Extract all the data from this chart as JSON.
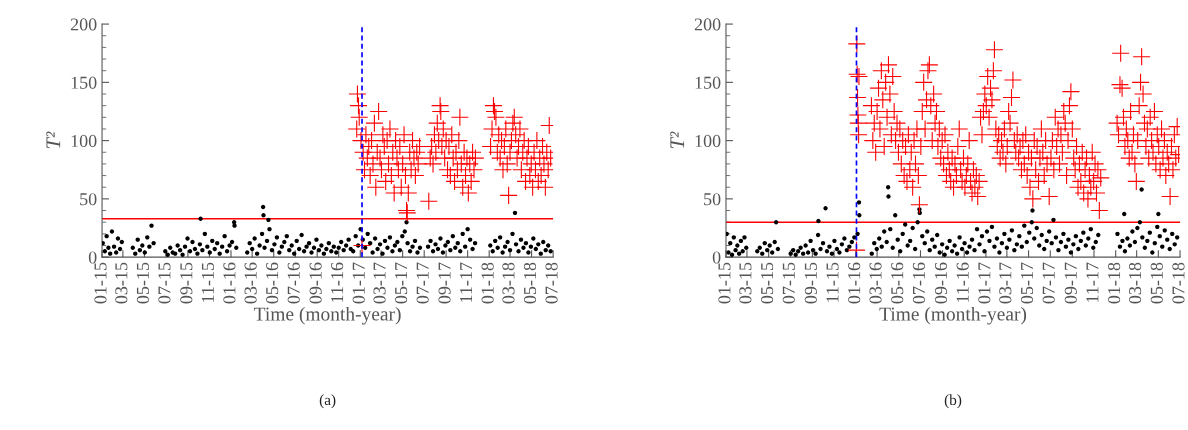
{
  "chart_data": [
    {
      "type": "scatter",
      "title": "(a)",
      "xlabel": "Time (month-year)",
      "ylabel": "T²",
      "xlim": [
        "2015-01-01",
        "2018-07-01"
      ],
      "ylim": [
        0,
        200
      ],
      "xticks": [
        {
          "value": "2015-01-01",
          "label": "01-15"
        },
        {
          "value": "2015-03-01",
          "label": "03-15"
        },
        {
          "value": "2015-05-01",
          "label": "05-15"
        },
        {
          "value": "2015-07-01",
          "label": "07-15"
        },
        {
          "value": "2015-09-01",
          "label": "09-15"
        },
        {
          "value": "2015-11-01",
          "label": "11-15"
        },
        {
          "value": "2016-01-01",
          "label": "01-16"
        },
        {
          "value": "2016-03-01",
          "label": "03-16"
        },
        {
          "value": "2016-05-01",
          "label": "05-16"
        },
        {
          "value": "2016-07-01",
          "label": "07-16"
        },
        {
          "value": "2016-09-01",
          "label": "09-16"
        },
        {
          "value": "2016-11-01",
          "label": "11-16"
        },
        {
          "value": "2017-01-01",
          "label": "01-17"
        },
        {
          "value": "2017-03-01",
          "label": "03-17"
        },
        {
          "value": "2017-05-01",
          "label": "05-17"
        },
        {
          "value": "2017-07-01",
          "label": "07-17"
        },
        {
          "value": "2017-09-01",
          "label": "09-17"
        },
        {
          "value": "2017-11-01",
          "label": "11-17"
        },
        {
          "value": "2018-01-01",
          "label": "01-18"
        },
        {
          "value": "2018-03-01",
          "label": "03-18"
        },
        {
          "value": "2018-05-01",
          "label": "05-18"
        },
        {
          "value": "2018-07-01",
          "label": "07-18"
        }
      ],
      "yticks": [
        0,
        {
          "value": 10,
          "label": null
        },
        {
          "value": 20,
          "label": null
        },
        {
          "value": 30,
          "label": null
        },
        {
          "value": 40,
          "label": null
        },
        50,
        {
          "value": 60,
          "label": null
        },
        {
          "value": 70,
          "label": null
        },
        {
          "value": 80,
          "label": null
        },
        {
          "value": 90,
          "label": null
        },
        100,
        {
          "value": 110,
          "label": null
        },
        {
          "value": 120,
          "label": null
        },
        {
          "value": 130,
          "label": null
        },
        {
          "value": 140,
          "label": null
        },
        150,
        {
          "value": 160,
          "label": null
        },
        {
          "value": 170,
          "label": null
        },
        {
          "value": 180,
          "label": null
        },
        {
          "value": 190,
          "label": null
        },
        200
      ],
      "grid": false,
      "legend": false,
      "ref_lines": [
        {
          "axis": "y",
          "value": 33,
          "color": "#ff0000",
          "line_style": "solid"
        },
        {
          "axis": "x",
          "value": "2017-01-06",
          "color": "#0000ff",
          "line_style": "dashed"
        }
      ],
      "series": [
        {
          "color": "#000000",
          "marker": "circle",
          "x": [
            "2015-01-03",
            "2015-01-09",
            "2015-01-14",
            "2015-01-19",
            "2015-01-24",
            "2015-01-29",
            "2015-02-04",
            "2015-02-10",
            "2015-02-15",
            "2015-02-21",
            "2015-02-26",
            "2015-03-29",
            "2015-04-05",
            "2015-04-12",
            "2015-04-18",
            "2015-04-25",
            "2015-05-02",
            "2015-05-09",
            "2015-05-15",
            "2015-05-21",
            "2015-05-27",
            "2015-06-29",
            "2015-07-06",
            "2015-07-13",
            "2015-07-20",
            "2015-07-27",
            "2015-08-03",
            "2015-08-10",
            "2015-08-17",
            "2015-08-24",
            "2015-08-31",
            "2015-09-07",
            "2015-09-14",
            "2015-09-21",
            "2015-09-28",
            "2015-10-05",
            "2015-10-07",
            "2015-10-12",
            "2015-10-19",
            "2015-10-26",
            "2015-11-02",
            "2015-11-09",
            "2015-11-16",
            "2015-11-23",
            "2015-11-30",
            "2015-12-07",
            "2015-12-14",
            "2015-12-21",
            "2015-12-28",
            "2016-01-04",
            "2016-01-10",
            "2016-01-11",
            "2016-01-16",
            "2016-02-16",
            "2016-02-23",
            "2016-03-01",
            "2016-03-08",
            "2016-03-15",
            "2016-03-22",
            "2016-03-29",
            "2016-04-01",
            "2016-04-02",
            "2016-04-05",
            "2016-04-12",
            "2016-04-16",
            "2016-04-19",
            "2016-04-26",
            "2016-05-03",
            "2016-05-10",
            "2016-05-17",
            "2016-05-24",
            "2016-05-31",
            "2016-06-07",
            "2016-06-14",
            "2016-06-21",
            "2016-06-28",
            "2016-07-05",
            "2016-07-12",
            "2016-07-19",
            "2016-07-26",
            "2016-08-02",
            "2016-08-09",
            "2016-08-16",
            "2016-08-23",
            "2016-08-30",
            "2016-09-06",
            "2016-09-13",
            "2016-09-20",
            "2016-09-27",
            "2016-10-04",
            "2016-10-11",
            "2016-10-18",
            "2016-10-25",
            "2016-11-01",
            "2016-11-08",
            "2016-11-15",
            "2016-11-22",
            "2016-11-29",
            "2016-12-05",
            "2016-12-12",
            "2016-12-19",
            "2016-12-26",
            "2017-01-02",
            "2017-01-08",
            "2017-01-15",
            "2017-01-22",
            "2017-01-29",
            "2017-02-05",
            "2017-02-12",
            "2017-02-19",
            "2017-02-26",
            "2017-03-05",
            "2017-03-12",
            "2017-03-19",
            "2017-03-26",
            "2017-04-02",
            "2017-04-09",
            "2017-04-16",
            "2017-04-23",
            "2017-04-30",
            "2017-05-07",
            "2017-05-12",
            "2017-05-15",
            "2017-05-22",
            "2017-05-29",
            "2017-06-05",
            "2017-06-12",
            "2017-06-19",
            "2017-07-12",
            "2017-07-19",
            "2017-07-26",
            "2017-08-02",
            "2017-08-09",
            "2017-08-16",
            "2017-08-23",
            "2017-08-30",
            "2017-09-06",
            "2017-09-13",
            "2017-09-20",
            "2017-09-27",
            "2017-10-04",
            "2017-10-11",
            "2017-10-18",
            "2017-10-25",
            "2017-11-01",
            "2017-11-08",
            "2017-11-15",
            "2017-11-22",
            "2018-01-04",
            "2018-01-11",
            "2018-01-18",
            "2018-01-25",
            "2018-02-01",
            "2018-02-08",
            "2018-02-15",
            "2018-02-22",
            "2018-03-01",
            "2018-03-08",
            "2018-03-15",
            "2018-03-18",
            "2018-03-25",
            "2018-04-01",
            "2018-04-08",
            "2018-04-15",
            "2018-04-22",
            "2018-04-29",
            "2018-05-06",
            "2018-05-13",
            "2018-05-20",
            "2018-05-27",
            "2018-06-03",
            "2018-06-10",
            "2018-06-17",
            "2018-06-24"
          ],
          "values": [
            12,
            5,
            18,
            8,
            3,
            22,
            9,
            4,
            16,
            7,
            13,
            8,
            3,
            15,
            6,
            10,
            4,
            17,
            9,
            27,
            12,
            5,
            2,
            8,
            4,
            3,
            10,
            6,
            2,
            9,
            16,
            5,
            13,
            7,
            3,
            11,
            33,
            6,
            20,
            9,
            4,
            14,
            7,
            12,
            3,
            9,
            18,
            5,
            10,
            13,
            30,
            27,
            8,
            4,
            12,
            7,
            16,
            3,
            10,
            20,
            43,
            36,
            8,
            14,
            32,
            24,
            6,
            11,
            17,
            4,
            9,
            13,
            18,
            6,
            10,
            3,
            14,
            7,
            19,
            5,
            9,
            12,
            4,
            8,
            15,
            6,
            10,
            3,
            7,
            12,
            5,
            9,
            4,
            8,
            13,
            6,
            10,
            15,
            7,
            5,
            18,
            10,
            24,
            15,
            8,
            20,
            12,
            4,
            16,
            7,
            11,
            3,
            14,
            8,
            17,
            5,
            10,
            13,
            6,
            18,
            22,
            30,
            12,
            5,
            9,
            14,
            4,
            8,
            9,
            14,
            5,
            11,
            7,
            16,
            4,
            10,
            13,
            6,
            18,
            8,
            12,
            5,
            20,
            9,
            24,
            15,
            7,
            12,
            10,
            5,
            14,
            8,
            17,
            4,
            9,
            13,
            6,
            20,
            38,
            11,
            5,
            15,
            8,
            12,
            4,
            9,
            16,
            7,
            11,
            3,
            13,
            6,
            10,
            5
          ]
        },
        {
          "color": "#ff0000",
          "marker": "cross",
          "x": [
            "2016-12-22",
            "2016-12-24",
            "2016-12-27",
            "2016-12-29",
            "2017-01-03",
            "2017-01-06",
            "2017-01-09",
            "2017-01-13",
            "2017-01-17",
            "2017-01-21",
            "2017-01-25",
            "2017-01-29",
            "2017-02-02",
            "2017-02-06",
            "2017-02-10",
            "2017-02-14",
            "2017-02-18",
            "2017-02-22",
            "2017-02-26",
            "2017-03-02",
            "2017-03-06",
            "2017-03-10",
            "2017-03-14",
            "2017-03-18",
            "2017-03-22",
            "2017-03-26",
            "2017-03-30",
            "2017-04-03",
            "2017-04-07",
            "2017-04-11",
            "2017-04-15",
            "2017-04-19",
            "2017-04-23",
            "2017-04-27",
            "2017-05-01",
            "2017-05-05",
            "2017-05-09",
            "2017-05-12",
            "2017-05-14",
            "2017-05-17",
            "2017-05-21",
            "2017-05-25",
            "2017-05-29",
            "2017-06-02",
            "2017-06-06",
            "2017-06-10",
            "2017-06-14",
            "2017-06-18",
            "2017-07-14",
            "2017-07-18",
            "2017-07-22",
            "2017-07-26",
            "2017-07-30",
            "2017-08-03",
            "2017-08-07",
            "2017-08-11",
            "2017-08-15",
            "2017-08-17",
            "2017-08-20",
            "2017-08-24",
            "2017-08-28",
            "2017-09-01",
            "2017-09-05",
            "2017-09-09",
            "2017-09-13",
            "2017-09-17",
            "2017-09-21",
            "2017-09-25",
            "2017-09-29",
            "2017-10-03",
            "2017-10-07",
            "2017-10-10",
            "2017-10-14",
            "2017-10-18",
            "2017-10-22",
            "2017-10-26",
            "2017-10-30",
            "2017-11-03",
            "2017-11-07",
            "2017-11-11",
            "2017-11-15",
            "2017-11-19",
            "2017-11-23",
            "2018-01-05",
            "2018-01-09",
            "2018-01-13",
            "2018-01-16",
            "2018-01-20",
            "2018-01-24",
            "2018-01-28",
            "2018-02-01",
            "2018-02-05",
            "2018-02-09",
            "2018-02-13",
            "2018-02-17",
            "2018-02-21",
            "2018-02-25",
            "2018-03-01",
            "2018-03-05",
            "2018-03-09",
            "2018-03-13",
            "2018-03-17",
            "2018-03-21",
            "2018-03-25",
            "2018-03-29",
            "2018-04-02",
            "2018-04-06",
            "2018-04-10",
            "2018-04-14",
            "2018-04-18",
            "2018-04-22",
            "2018-04-26",
            "2018-04-30",
            "2018-05-04",
            "2018-05-08",
            "2018-05-12",
            "2018-05-16",
            "2018-05-20",
            "2018-05-24",
            "2018-05-28",
            "2018-06-01",
            "2018-06-05",
            "2018-06-09",
            "2018-06-13",
            "2018-06-17",
            "2018-06-20",
            "2018-06-24"
          ],
          "values": [
            110,
            140,
            130,
            120,
            100,
            10,
            90,
            75,
            105,
            85,
            95,
            70,
            100,
            80,
            115,
            60,
            90,
            125,
            85,
            75,
            105,
            95,
            65,
            100,
            80,
            110,
            70,
            90,
            55,
            100,
            85,
            75,
            95,
            60,
            80,
            105,
            70,
            40,
            38,
            55,
            90,
            75,
            100,
            85,
            70,
            90,
            80,
            95,
            48,
            85,
            95,
            80,
            105,
            90,
            115,
            100,
            130,
            125,
            95,
            110,
            85,
            100,
            75,
            95,
            70,
            105,
            85,
            65,
            90,
            75,
            100,
            120,
            80,
            60,
            90,
            70,
            85,
            55,
            80,
            65,
            90,
            75,
            85,
            95,
            110,
            130,
            125,
            120,
            90,
            105,
            85,
            100,
            75,
            95,
            110,
            80,
            53,
            90,
            100,
            115,
            120,
            105,
            85,
            95,
            110,
            75,
            90,
            100,
            65,
            85,
            95,
            70,
            80,
            60,
            90,
            75,
            100,
            65,
            85,
            70,
            95,
            80,
            60,
            90,
            75,
            113,
            85
          ]
        }
      ]
    },
    {
      "type": "scatter",
      "title": "(b)",
      "xlabel": "Time (month-year)",
      "ylabel": "T²",
      "xlim": [
        "2015-01-01",
        "2018-07-01"
      ],
      "ylim": [
        0,
        200
      ],
      "xticks": [
        {
          "value": "2015-01-01",
          "label": "01-15"
        },
        {
          "value": "2015-03-01",
          "label": "03-15"
        },
        {
          "value": "2015-05-01",
          "label": "05-15"
        },
        {
          "value": "2015-07-01",
          "label": "07-15"
        },
        {
          "value": "2015-09-01",
          "label": "09-15"
        },
        {
          "value": "2015-11-01",
          "label": "11-15"
        },
        {
          "value": "2016-01-01",
          "label": "01-16"
        },
        {
          "value": "2016-03-01",
          "label": "03-16"
        },
        {
          "value": "2016-05-01",
          "label": "05-16"
        },
        {
          "value": "2016-07-01",
          "label": "07-16"
        },
        {
          "value": "2016-09-01",
          "label": "09-16"
        },
        {
          "value": "2016-11-01",
          "label": "11-16"
        },
        {
          "value": "2017-01-01",
          "label": "01-17"
        },
        {
          "value": "2017-03-01",
          "label": "03-17"
        },
        {
          "value": "2017-05-01",
          "label": "05-17"
        },
        {
          "value": "2017-07-01",
          "label": "07-17"
        },
        {
          "value": "2017-09-01",
          "label": "09-17"
        },
        {
          "value": "2017-11-01",
          "label": "11-17"
        },
        {
          "value": "2018-01-01",
          "label": "01-18"
        },
        {
          "value": "2018-03-01",
          "label": "03-18"
        },
        {
          "value": "2018-05-01",
          "label": "05-18"
        },
        {
          "value": "2018-07-01",
          "label": "07-18"
        }
      ],
      "yticks": [
        0,
        {
          "value": 10,
          "label": null
        },
        {
          "value": 20,
          "label": null
        },
        {
          "value": 30,
          "label": null
        },
        {
          "value": 40,
          "label": null
        },
        50,
        {
          "value": 60,
          "label": null
        },
        {
          "value": 70,
          "label": null
        },
        {
          "value": 80,
          "label": null
        },
        {
          "value": 90,
          "label": null
        },
        100,
        {
          "value": 110,
          "label": null
        },
        {
          "value": 120,
          "label": null
        },
        {
          "value": 130,
          "label": null
        },
        {
          "value": 140,
          "label": null
        },
        150,
        {
          "value": 160,
          "label": null
        },
        {
          "value": 170,
          "label": null
        },
        {
          "value": 180,
          "label": null
        },
        {
          "value": 190,
          "label": null
        },
        200
      ],
      "grid": false,
      "legend": false,
      "ref_lines": [
        {
          "axis": "y",
          "value": 30,
          "color": "#ff0000",
          "line_style": "solid"
        },
        {
          "axis": "x",
          "value": "2016-01-03",
          "color": "#0000ff",
          "line_style": "dashed"
        }
      ],
      "series": [
        {
          "color": "#000000",
          "marker": "circle",
          "x": [
            "2015-01-03",
            "2015-01-08",
            "2015-01-13",
            "2015-01-18",
            "2015-01-23",
            "2015-01-28",
            "2015-02-02",
            "2015-02-07",
            "2015-02-12",
            "2015-02-17",
            "2015-02-22",
            "2015-02-27",
            "2015-03-30",
            "2015-04-06",
            "2015-04-13",
            "2015-04-20",
            "2015-04-27",
            "2015-05-04",
            "2015-05-11",
            "2015-05-18",
            "2015-05-22",
            "2015-05-27",
            "2015-07-02",
            "2015-07-09",
            "2015-07-16",
            "2015-07-23",
            "2015-07-30",
            "2015-08-06",
            "2015-08-13",
            "2015-08-20",
            "2015-08-27",
            "2015-09-03",
            "2015-09-10",
            "2015-09-17",
            "2015-09-18",
            "2015-09-24",
            "2015-10-01",
            "2015-10-08",
            "2015-10-12",
            "2015-10-19",
            "2015-10-26",
            "2015-11-02",
            "2015-11-09",
            "2015-11-16",
            "2015-11-23",
            "2015-11-30",
            "2015-12-07",
            "2015-12-14",
            "2015-12-21",
            "2015-12-28",
            "2016-01-06",
            "2016-01-10",
            "2016-01-11",
            "2016-02-15",
            "2016-02-22",
            "2016-02-29",
            "2016-03-07",
            "2016-03-14",
            "2016-03-21",
            "2016-03-28",
            "2016-04-01",
            "2016-04-02",
            "2016-04-07",
            "2016-04-14",
            "2016-04-21",
            "2016-04-28",
            "2016-05-05",
            "2016-05-12",
            "2016-05-19",
            "2016-05-26",
            "2016-06-02",
            "2016-06-09",
            "2016-06-16",
            "2016-06-23",
            "2016-06-28",
            "2016-06-29",
            "2016-07-06",
            "2016-07-13",
            "2016-07-20",
            "2016-07-27",
            "2016-08-03",
            "2016-08-10",
            "2016-08-17",
            "2016-08-24",
            "2016-08-31",
            "2016-09-07",
            "2016-09-14",
            "2016-09-21",
            "2016-09-28",
            "2016-10-05",
            "2016-10-12",
            "2016-10-19",
            "2016-10-26",
            "2016-11-02",
            "2016-11-09",
            "2016-11-16",
            "2016-11-23",
            "2016-11-30",
            "2016-12-07",
            "2016-12-14",
            "2016-12-21",
            "2016-12-28",
            "2017-01-04",
            "2017-01-11",
            "2017-01-18",
            "2017-01-25",
            "2017-02-01",
            "2017-02-08",
            "2017-02-15",
            "2017-02-22",
            "2017-03-01",
            "2017-03-08",
            "2017-03-15",
            "2017-03-22",
            "2017-03-29",
            "2017-04-05",
            "2017-04-12",
            "2017-04-19",
            "2017-04-26",
            "2017-05-03",
            "2017-05-10",
            "2017-05-12",
            "2017-05-17",
            "2017-05-24",
            "2017-05-31",
            "2017-06-07",
            "2017-06-14",
            "2017-06-21",
            "2017-06-28",
            "2017-07-05",
            "2017-07-10",
            "2017-07-17",
            "2017-07-24",
            "2017-07-31",
            "2017-08-07",
            "2017-08-14",
            "2017-08-21",
            "2017-08-28",
            "2017-09-04",
            "2017-09-11",
            "2017-09-18",
            "2017-09-25",
            "2017-10-02",
            "2017-10-09",
            "2017-10-16",
            "2017-10-23",
            "2017-10-30",
            "2017-11-06",
            "2017-11-13",
            "2018-01-06",
            "2018-01-13",
            "2018-01-20",
            "2018-01-25",
            "2018-01-27",
            "2018-02-03",
            "2018-02-10",
            "2018-02-17",
            "2018-02-24",
            "2018-03-03",
            "2018-03-10",
            "2018-03-15",
            "2018-03-17",
            "2018-03-24",
            "2018-03-31",
            "2018-04-07",
            "2018-04-14",
            "2018-04-21",
            "2018-04-28",
            "2018-05-01",
            "2018-05-05",
            "2018-05-12",
            "2018-05-19",
            "2018-05-26",
            "2018-06-02",
            "2018-06-09",
            "2018-06-16",
            "2018-06-23"
          ],
          "values": [
            20,
            4,
            12,
            2,
            17,
            6,
            10,
            3,
            14,
            5,
            17,
            8,
            5,
            8,
            3,
            12,
            6,
            10,
            4,
            13,
            30,
            7,
            3,
            6,
            2,
            5,
            8,
            3,
            10,
            4,
            14,
            6,
            3,
            19,
            31,
            7,
            12,
            42,
            5,
            9,
            3,
            14,
            7,
            4,
            11,
            16,
            6,
            9,
            13,
            17,
            20,
            47,
            36,
            3,
            12,
            7,
            16,
            9,
            22,
            13,
            60,
            52,
            24,
            8,
            36,
            15,
            5,
            20,
            28,
            10,
            14,
            25,
            7,
            30,
            41,
            38,
            18,
            12,
            22,
            6,
            15,
            9,
            19,
            4,
            11,
            2,
            8,
            14,
            5,
            10,
            3,
            17,
            7,
            12,
            4,
            9,
            15,
            6,
            24,
            11,
            18,
            5,
            22,
            14,
            26,
            9,
            16,
            4,
            12,
            20,
            8,
            15,
            23,
            6,
            11,
            18,
            9,
            27,
            13,
            21,
            30,
            40,
            16,
            25,
            10,
            19,
            7,
            14,
            22,
            12,
            32,
            17,
            6,
            13,
            20,
            9,
            15,
            4,
            11,
            18,
            7,
            14,
            21,
            10,
            16,
            24,
            8,
            13,
            19,
            20,
            9,
            14,
            37,
            5,
            16,
            10,
            22,
            13,
            25,
            30,
            58,
            17,
            8,
            14,
            21,
            4,
            12,
            26,
            37,
            18,
            9,
            23,
            15,
            7,
            20,
            11,
            17
          ]
        },
        {
          "color": "#ff0000",
          "marker": "cross",
          "x": [
            "2016-01-03",
            "2016-01-04",
            "2016-01-05",
            "2016-01-06",
            "2016-01-07",
            "2016-01-08",
            "2016-01-09",
            "2016-01-10",
            "2016-02-14",
            "2016-02-18",
            "2016-02-22",
            "2016-02-26",
            "2016-03-01",
            "2016-03-05",
            "2016-03-09",
            "2016-03-13",
            "2016-03-17",
            "2016-03-21",
            "2016-03-25",
            "2016-03-29",
            "2016-04-02",
            "2016-04-06",
            "2016-04-10",
            "2016-04-14",
            "2016-04-18",
            "2016-04-22",
            "2016-04-26",
            "2016-04-30",
            "2016-05-04",
            "2016-05-08",
            "2016-05-12",
            "2016-05-16",
            "2016-05-20",
            "2016-05-24",
            "2016-05-28",
            "2016-06-01",
            "2016-06-05",
            "2016-06-09",
            "2016-06-13",
            "2016-06-17",
            "2016-06-21",
            "2016-06-25",
            "2016-06-28",
            "2016-07-02",
            "2016-07-06",
            "2016-07-10",
            "2016-07-14",
            "2016-07-18",
            "2016-07-22",
            "2016-07-26",
            "2016-07-30",
            "2016-08-03",
            "2016-08-07",
            "2016-08-11",
            "2016-08-15",
            "2016-08-19",
            "2016-08-23",
            "2016-08-27",
            "2016-08-31",
            "2016-09-04",
            "2016-09-08",
            "2016-09-12",
            "2016-09-16",
            "2016-09-20",
            "2016-09-24",
            "2016-09-28",
            "2016-10-02",
            "2016-10-06",
            "2016-10-10",
            "2016-10-14",
            "2016-10-18",
            "2016-10-22",
            "2016-10-26",
            "2016-10-30",
            "2016-11-03",
            "2016-11-07",
            "2016-11-11",
            "2016-11-15",
            "2016-11-19",
            "2016-11-23",
            "2016-11-27",
            "2016-12-01",
            "2016-12-05",
            "2016-12-09",
            "2016-12-13",
            "2016-12-17",
            "2016-12-21",
            "2016-12-25",
            "2016-12-29",
            "2017-01-02",
            "2017-01-06",
            "2017-01-10",
            "2017-01-14",
            "2017-01-18",
            "2017-01-22",
            "2017-01-25",
            "2017-01-29",
            "2017-02-02",
            "2017-02-06",
            "2017-02-10",
            "2017-02-14",
            "2017-02-18",
            "2017-02-22",
            "2017-02-26",
            "2017-03-02",
            "2017-03-06",
            "2017-03-10",
            "2017-03-14",
            "2017-03-18",
            "2017-03-22",
            "2017-03-26",
            "2017-03-30",
            "2017-04-03",
            "2017-04-07",
            "2017-04-11",
            "2017-04-15",
            "2017-04-19",
            "2017-04-23",
            "2017-04-27",
            "2017-05-01",
            "2017-05-05",
            "2017-05-09",
            "2017-05-13",
            "2017-05-17",
            "2017-05-21",
            "2017-05-25",
            "2017-05-29",
            "2017-06-02",
            "2017-06-06",
            "2017-06-10",
            "2017-06-14",
            "2017-06-18",
            "2017-06-22",
            "2017-06-28",
            "2017-07-03",
            "2017-07-07",
            "2017-07-11",
            "2017-07-15",
            "2017-07-19",
            "2017-07-23",
            "2017-07-27",
            "2017-07-31",
            "2017-08-04",
            "2017-08-08",
            "2017-08-12",
            "2017-08-16",
            "2017-08-20",
            "2017-08-24",
            "2017-08-28",
            "2017-09-01",
            "2017-09-05",
            "2017-09-09",
            "2017-09-13",
            "2017-09-17",
            "2017-09-21",
            "2017-09-25",
            "2017-09-29",
            "2017-10-03",
            "2017-10-07",
            "2017-10-11",
            "2017-10-15",
            "2017-10-19",
            "2017-10-23",
            "2017-10-27",
            "2017-10-31",
            "2017-11-04",
            "2017-11-08",
            "2017-11-12",
            "2017-11-16",
            "2017-11-20",
            "2018-01-05",
            "2018-01-09",
            "2018-01-13",
            "2018-01-15",
            "2018-01-19",
            "2018-01-23",
            "2018-01-27",
            "2018-01-31",
            "2018-02-04",
            "2018-02-08",
            "2018-02-12",
            "2018-02-16",
            "2018-02-20",
            "2018-02-24",
            "2018-02-28",
            "2018-03-04",
            "2018-03-08",
            "2018-03-12",
            "2018-03-15",
            "2018-03-19",
            "2018-03-23",
            "2018-03-27",
            "2018-03-31",
            "2018-04-04",
            "2018-04-08",
            "2018-04-12",
            "2018-04-16",
            "2018-04-20",
            "2018-04-24",
            "2018-04-28",
            "2018-05-02",
            "2018-05-06",
            "2018-05-10",
            "2018-05-14",
            "2018-05-18",
            "2018-05-22",
            "2018-05-26",
            "2018-05-30",
            "2018-06-03",
            "2018-06-07",
            "2018-06-11",
            "2018-06-15",
            "2018-06-19",
            "2018-06-23",
            "2018-06-27"
          ],
          "values": [
            6,
            183,
            157,
            137,
            122,
            115,
            105,
            155,
            130,
            100,
            115,
            90,
            125,
            145,
            110,
            160,
            135,
            95,
            150,
            120,
            165,
            140,
            105,
            155,
            125,
            100,
            115,
            90,
            110,
            80,
            100,
            70,
            95,
            65,
            105,
            75,
            90,
            60,
            100,
            80,
            110,
            70,
            45,
            95,
            125,
            150,
            110,
            135,
            160,
            165,
            130,
            100,
            140,
            115,
            125,
            95,
            110,
            85,
            100,
            80,
            105,
            70,
            90,
            75,
            65,
            85,
            60,
            80,
            70,
            95,
            110,
            75,
            65,
            85,
            60,
            70,
            80,
            100,
            65,
            55,
            75,
            60,
            70,
            52,
            65,
            120,
            105,
            125,
            140,
            130,
            155,
            120,
            145,
            135,
            160,
            178,
            110,
            95,
            105,
            85,
            100,
            90,
            110,
            80,
            95,
            125,
            115,
            137,
            152,
            100,
            90,
            105,
            85,
            95,
            75,
            100,
            80,
            105,
            70,
            90,
            60,
            85,
            50,
            100,
            75,
            95,
            65,
            85,
            110,
            90,
            70,
            100,
            80,
            52,
            85,
            100,
            75,
            120,
            95,
            110,
            80,
            105,
            90,
            125,
            115,
            70,
            100,
            130,
            142,
            110,
            85,
            75,
            95,
            60,
            80,
            65,
            90,
            55,
            75,
            85,
            50,
            70,
            60,
            90,
            65,
            80,
            55,
            75,
            40,
            68,
            115,
            105,
            148,
            175,
            145,
            120,
            95,
            110,
            100,
            85,
            125,
            90,
            105,
            80,
            65,
            100,
            130,
            150,
            172,
            140,
            115,
            95,
            110,
            85,
            120,
            100,
            90,
            125,
            80,
            105,
            95,
            75,
            110,
            85,
            100,
            70,
            90,
            80,
            52,
            95,
            75,
            105,
            85,
            112,
            88
          ]
        }
      ]
    }
  ]
}
